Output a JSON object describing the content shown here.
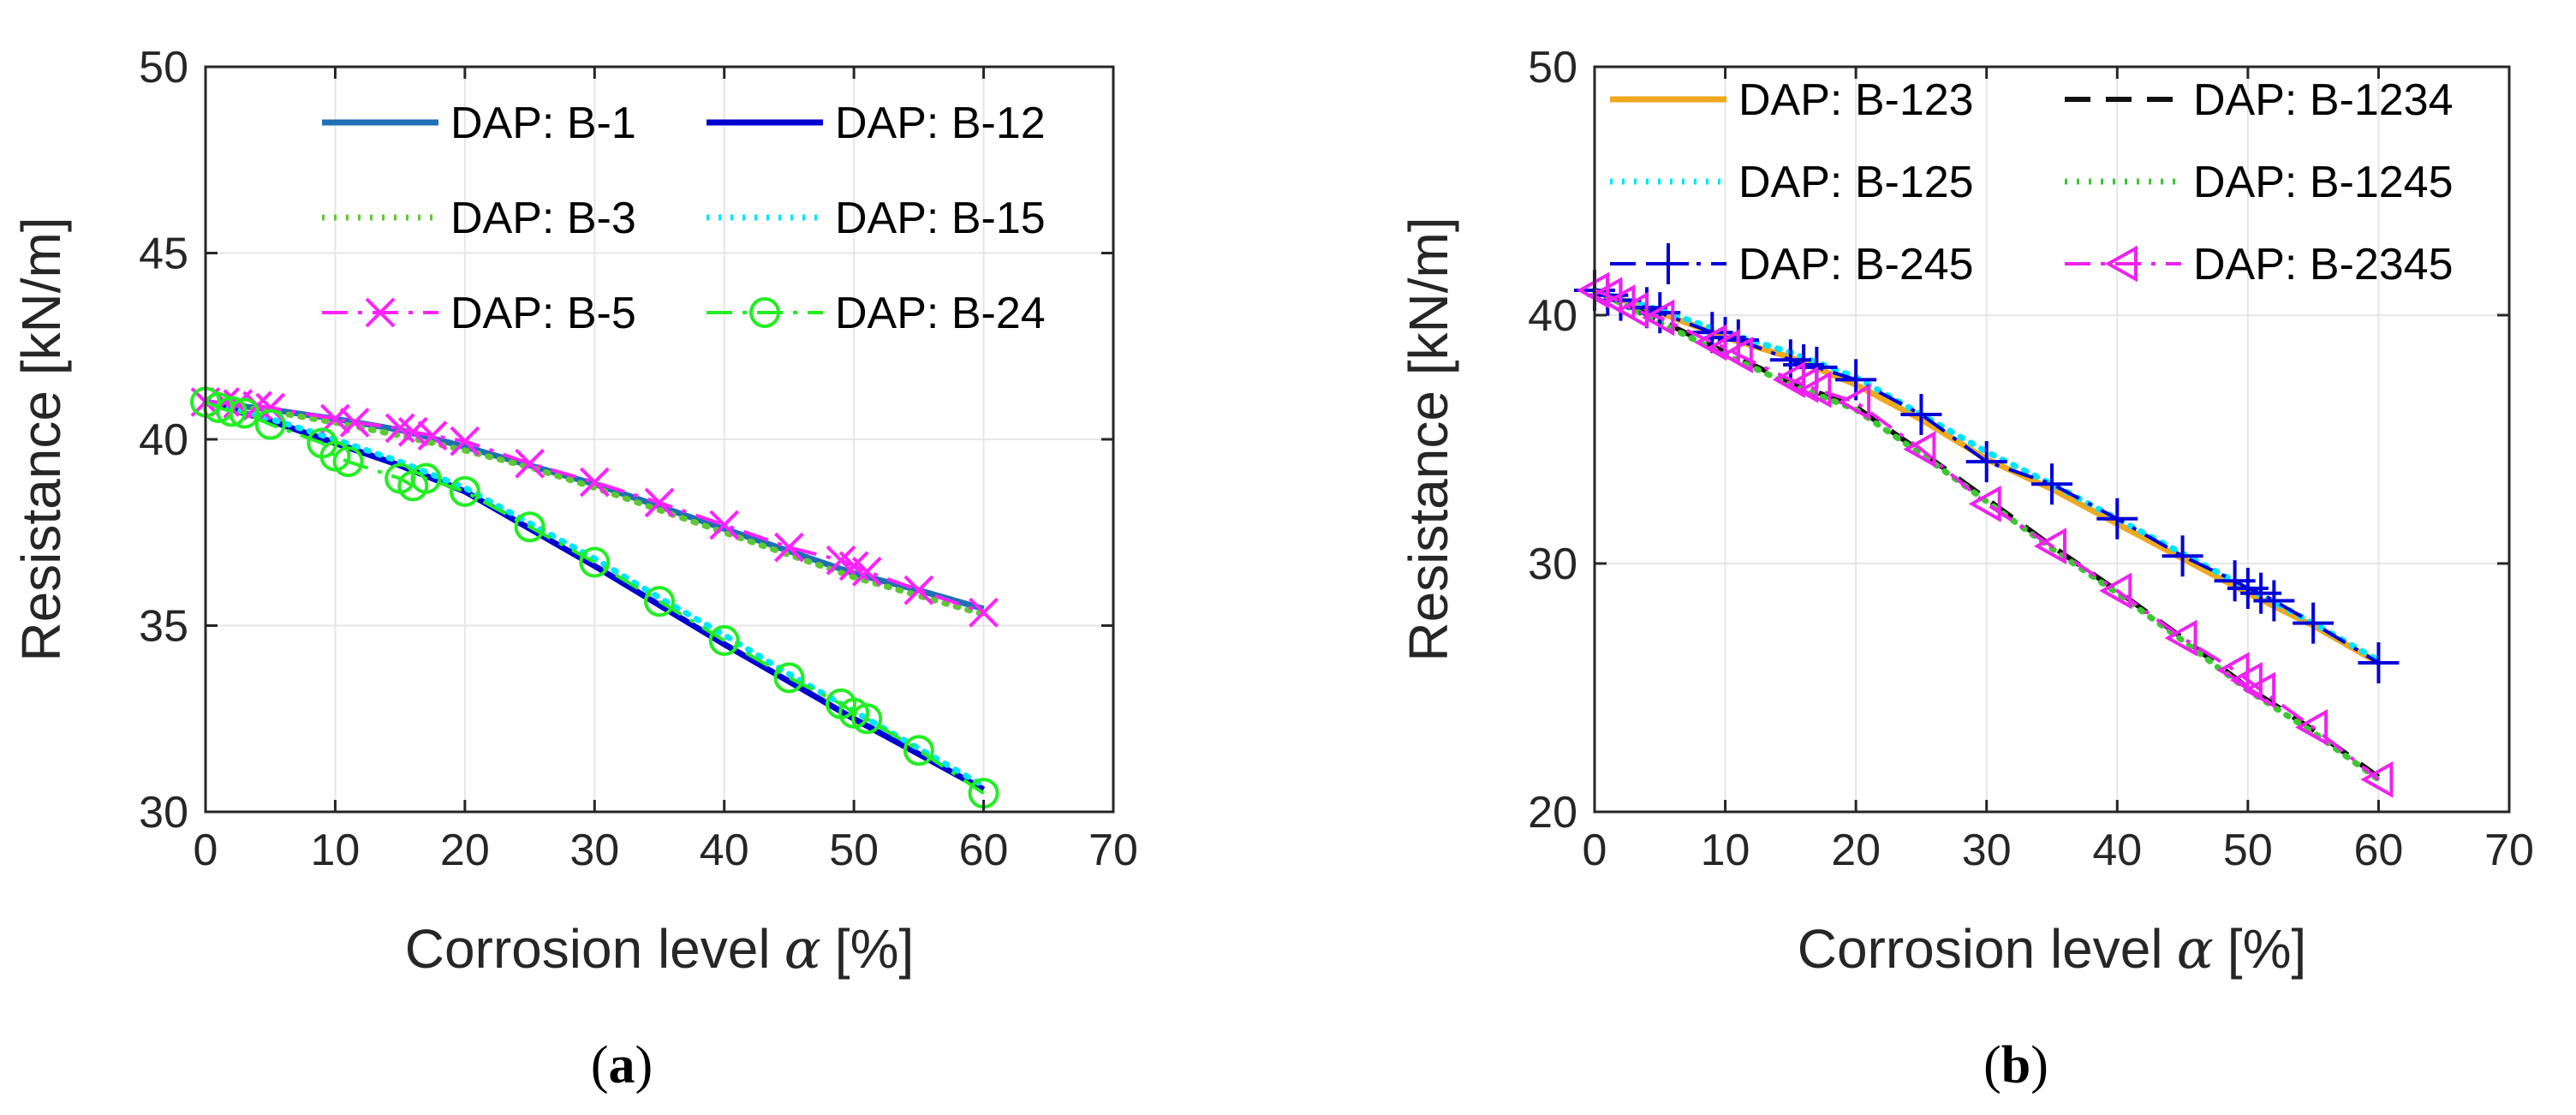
{
  "chart_data": [
    {
      "id": "a",
      "type": "line",
      "caption": {
        "open": "(",
        "letter": "a",
        "close": ")"
      },
      "xlabel": "Corrosion level",
      "xlabel_symbol": "α",
      "xlabel_unit": "[%]",
      "ylabel": "Resistance [kN/m]",
      "xlim": [
        0,
        70
      ],
      "ylim": [
        30,
        50
      ],
      "xticks": [
        0,
        10,
        20,
        30,
        40,
        50,
        60,
        70
      ],
      "yticks": [
        30,
        35,
        40,
        45,
        50
      ],
      "grid": true,
      "legend_position": "top-right",
      "legend_columns": 2,
      "series": [
        {
          "name": "DAP: B-1",
          "color": "#1f6fb5",
          "style": "solid",
          "width": 7,
          "marker": "none",
          "x": [
            0,
            5,
            10,
            15,
            20,
            25,
            30,
            35,
            40,
            45,
            50,
            55,
            60
          ],
          "y": [
            41,
            40.8,
            40.55,
            40.25,
            39.8,
            39.3,
            38.8,
            38.2,
            37.6,
            37.0,
            36.4,
            35.95,
            35.45
          ]
        },
        {
          "name": "DAP: B-12",
          "color": "#0000d0",
          "style": "solid",
          "width": 7,
          "marker": "none",
          "x": [
            0,
            5,
            10,
            15,
            20,
            25,
            30,
            35,
            40,
            45,
            50,
            55,
            60
          ],
          "y": [
            41,
            40.5,
            39.9,
            39.3,
            38.6,
            37.6,
            36.6,
            35.55,
            34.5,
            33.5,
            32.5,
            31.55,
            30.6
          ]
        },
        {
          "name": "DAP: B-3",
          "color": "#5ec832",
          "style": "dotted",
          "width": 7,
          "marker": "none",
          "x": [
            0,
            5,
            10,
            15,
            20,
            25,
            30,
            35,
            40,
            45,
            50,
            55,
            60
          ],
          "y": [
            41,
            40.75,
            40.45,
            40.1,
            39.7,
            39.25,
            38.7,
            38.1,
            37.5,
            36.9,
            36.3,
            35.8,
            35.3
          ]
        },
        {
          "name": "DAP: B-15",
          "color": "#00e5ff",
          "style": "dotted",
          "width": 7,
          "marker": "none",
          "x": [
            0,
            5,
            10,
            15,
            20,
            25,
            30,
            35,
            40,
            45,
            50,
            55,
            60
          ],
          "y": [
            41,
            40.55,
            40.0,
            39.4,
            38.7,
            37.75,
            36.8,
            35.75,
            34.75,
            33.7,
            32.7,
            31.7,
            30.7
          ]
        },
        {
          "name": "DAP: B-5",
          "color": "#ff22ff",
          "style": "dashdot",
          "width": 4,
          "marker": "x",
          "x": [
            0,
            1.5,
            2.5,
            4,
            5,
            10,
            11.5,
            15,
            16,
            17.5,
            20,
            25,
            30,
            35,
            40,
            45,
            49,
            50,
            51,
            55,
            60
          ],
          "y": [
            41,
            41.0,
            40.95,
            40.9,
            40.85,
            40.55,
            40.45,
            40.3,
            40.2,
            40.1,
            39.95,
            39.35,
            38.85,
            38.3,
            37.7,
            37.1,
            36.75,
            36.6,
            36.45,
            35.95,
            35.35
          ]
        },
        {
          "name": "DAP: B-24",
          "color": "#22ee22",
          "style": "dashdot",
          "width": 4,
          "marker": "o",
          "x": [
            0,
            1,
            2,
            3,
            5,
            9,
            10,
            11,
            15,
            16,
            17,
            20,
            25,
            30,
            35,
            40,
            45,
            49,
            50,
            51,
            55,
            60
          ],
          "y": [
            41,
            40.85,
            40.75,
            40.7,
            40.4,
            39.9,
            39.55,
            39.4,
            38.95,
            38.75,
            38.95,
            38.6,
            37.65,
            36.7,
            35.65,
            34.6,
            33.6,
            32.9,
            32.65,
            32.5,
            31.65,
            30.5
          ]
        }
      ]
    },
    {
      "id": "b",
      "type": "line",
      "caption": {
        "open": "(",
        "letter": "b",
        "close": ")"
      },
      "xlabel": "Corrosion level",
      "xlabel_symbol": "α",
      "xlabel_unit": "[%]",
      "ylabel": "Resistance [kN/m]",
      "xlim": [
        0,
        70
      ],
      "ylim": [
        20,
        50
      ],
      "xticks": [
        0,
        10,
        20,
        30,
        40,
        50,
        60,
        70
      ],
      "yticks": [
        20,
        30,
        40,
        50
      ],
      "grid": true,
      "legend_position": "top",
      "legend_columns": 2,
      "series": [
        {
          "name": "DAP: B-123",
          "color": "#f0a81e",
          "style": "solid",
          "width": 7,
          "marker": "none",
          "x": [
            0,
            5,
            10,
            15,
            20,
            25,
            30,
            35,
            40,
            45,
            50,
            55,
            60
          ],
          "y": [
            41,
            40.1,
            39.1,
            38.3,
            37.2,
            35.8,
            34.2,
            33.0,
            31.6,
            30.2,
            28.8,
            27.5,
            26.0
          ]
        },
        {
          "name": "DAP: B-1234",
          "color": "#111111",
          "style": "dashed",
          "width": 6,
          "marker": "none",
          "x": [
            0,
            5,
            10,
            15,
            20,
            25,
            30,
            35,
            40,
            45,
            50,
            55,
            60
          ],
          "y": [
            41,
            39.8,
            38.5,
            37.3,
            36.3,
            34.5,
            32.6,
            30.7,
            28.9,
            27.0,
            25.0,
            23.3,
            21.4
          ]
        },
        {
          "name": "DAP: B-125",
          "color": "#00e5ff",
          "style": "dotted",
          "width": 7,
          "marker": "none",
          "x": [
            0,
            5,
            10,
            15,
            20,
            25,
            30,
            35,
            40,
            45,
            50,
            55,
            60
          ],
          "y": [
            41,
            40.2,
            39.3,
            38.5,
            37.5,
            36.0,
            34.5,
            33.2,
            31.8,
            30.4,
            29.0,
            27.6,
            26.1
          ]
        },
        {
          "name": "DAP: B-1245",
          "color": "#3cc832",
          "style": "dotted",
          "width": 7,
          "marker": "none",
          "x": [
            0,
            5,
            10,
            15,
            20,
            25,
            30,
            35,
            40,
            45,
            50,
            55,
            60
          ],
          "y": [
            41,
            39.7,
            38.4,
            37.2,
            36.2,
            34.4,
            32.5,
            30.6,
            28.8,
            26.9,
            24.9,
            23.2,
            21.3
          ]
        },
        {
          "name": "DAP: B-245",
          "color": "#0000d8",
          "style": "dashdot",
          "width": 4,
          "marker": "+",
          "x": [
            0,
            1,
            2,
            4,
            5,
            9,
            10,
            11,
            15,
            16,
            17,
            20,
            25,
            30,
            35,
            40,
            45,
            49,
            50,
            51,
            52,
            55,
            60
          ],
          "y": [
            41,
            40.8,
            40.6,
            40.3,
            40.1,
            39.3,
            39.1,
            39.0,
            38.2,
            38.0,
            37.9,
            37.4,
            36.0,
            34.1,
            33.2,
            31.8,
            30.3,
            29.3,
            29.0,
            28.8,
            28.5,
            27.6,
            26.0
          ]
        },
        {
          "name": "DAP: B-2345",
          "color": "#ee22ee",
          "style": "dashdot",
          "width": 4,
          "marker": "triangle-left",
          "x": [
            0,
            1,
            2,
            3,
            5,
            9,
            10,
            11,
            15,
            16,
            17,
            20,
            25,
            30,
            35,
            40,
            45,
            49,
            50,
            51,
            55,
            60
          ],
          "y": [
            41,
            40.8,
            40.5,
            40.2,
            39.9,
            38.9,
            38.7,
            38.4,
            37.4,
            37.2,
            37.0,
            36.5,
            34.6,
            32.4,
            30.7,
            28.9,
            27.0,
            25.7,
            25.3,
            24.9,
            23.4,
            21.3
          ]
        }
      ]
    }
  ]
}
